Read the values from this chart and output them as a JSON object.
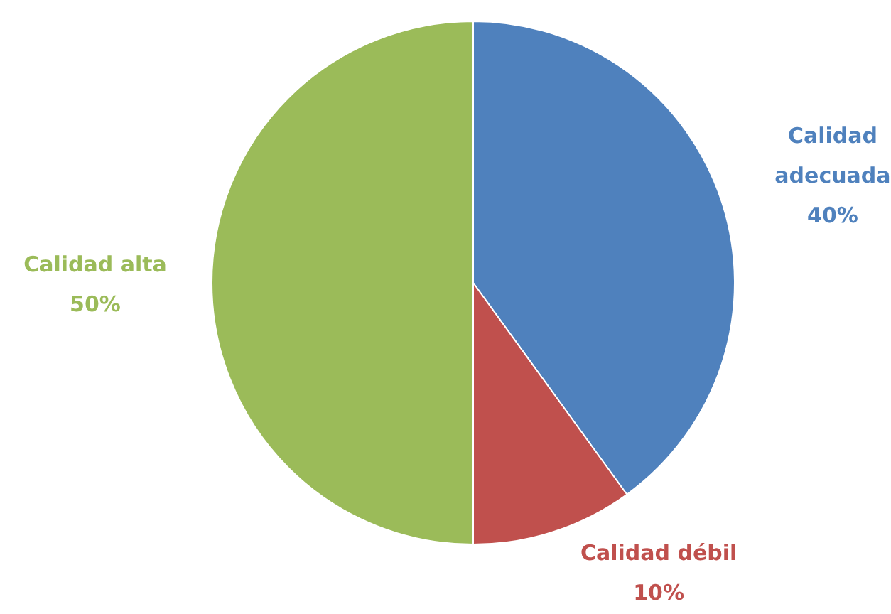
{
  "chart_data": {
    "type": "pie",
    "categories": [
      "Calidad adecuada",
      "Calidad débil",
      "Calidad alta"
    ],
    "values": [
      40,
      10,
      50
    ],
    "value_labels": [
      "40%",
      "10%",
      "50%"
    ],
    "colors": [
      "#4f81bd",
      "#c0504d",
      "#9bbb59"
    ]
  }
}
